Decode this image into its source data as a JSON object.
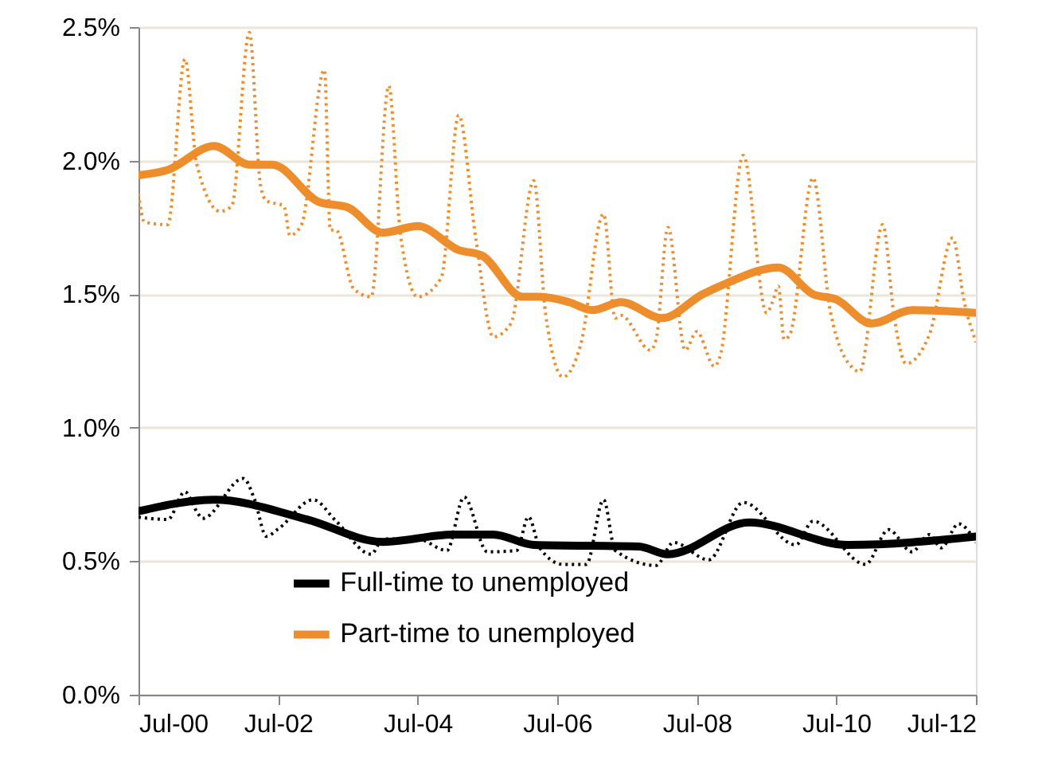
{
  "chart_data": {
    "type": "line",
    "xlim": [
      "2000-07",
      "2012-07"
    ],
    "xticks": [
      {
        "value": "2000-07",
        "label": "Jul-00"
      },
      {
        "value": "2002-07",
        "label": "Jul-02"
      },
      {
        "value": "2004-07",
        "label": "Jul-04"
      },
      {
        "value": "2006-07",
        "label": "Jul-06"
      },
      {
        "value": "2008-07",
        "label": "Jul-08"
      },
      {
        "value": "2010-07",
        "label": "Jul-10"
      },
      {
        "value": "2012-07",
        "label": "Jul-12"
      }
    ],
    "ylim": [
      0,
      2.5
    ],
    "yticks": [
      {
        "value": 0,
        "label": "0.0%"
      },
      {
        "value": 0.5,
        "label": "0.5%"
      },
      {
        "value": 1,
        "label": "1.0%"
      },
      {
        "value": 1.5,
        "label": "1.5%"
      },
      {
        "value": 2,
        "label": "2.0%"
      },
      {
        "value": 2.5,
        "label": "2.5%"
      }
    ],
    "grid": "y",
    "legend": "bottom",
    "marker": "none",
    "series": [
      {
        "color": "#000000",
        "line_style": "dotted",
        "x": [
          "2000-07",
          "2000-12",
          "2001-03",
          "2001-05",
          "2001-06",
          "2002-01",
          "2002-03",
          "2002-05",
          "2002-07",
          "2003-01",
          "2003-05",
          "2003-11",
          "2004-01",
          "2004-07",
          "2004-12",
          "2005-03",
          "2005-07",
          "2005-12",
          "2006-02",
          "2006-04",
          "2006-08",
          "2006-12",
          "2007-03",
          "2007-05",
          "2007-12",
          "2008-03",
          "2008-09",
          "2009-03",
          "2009-12",
          "2010-03",
          "2010-12",
          "2011-04",
          "2011-08",
          "2011-11",
          "2012-01",
          "2012-04",
          "2012-07"
        ],
        "values": [
          0.665,
          0.656,
          0.76,
          0.687,
          0.66,
          0.81,
          0.73,
          0.593,
          0.62,
          0.73,
          0.65,
          0.526,
          0.583,
          0.583,
          0.54,
          0.74,
          0.535,
          0.54,
          0.666,
          0.55,
          0.488,
          0.488,
          0.73,
          0.54,
          0.484,
          0.57,
          0.505,
          0.72,
          0.561,
          0.65,
          0.488,
          0.618,
          0.535,
          0.6,
          0.55,
          0.64,
          0.57
        ]
      },
      {
        "color": "#ed8d2c",
        "line_style": "dotted",
        "x": [
          "2000-07",
          "2000-08",
          "2000-12",
          "2001-03",
          "2001-05",
          "2001-09",
          "2001-11",
          "2002-02",
          "2002-04",
          "2002-05",
          "2002-08",
          "2002-09",
          "2002-11",
          "2003-03",
          "2003-04",
          "2003-05",
          "2003-08",
          "2003-11",
          "2004-02",
          "2004-04",
          "2004-07",
          "2004-11",
          "2005-02",
          "2005-05",
          "2005-08",
          "2005-11",
          "2006-03",
          "2006-05",
          "2006-08",
          "2006-11",
          "2007-03",
          "2007-05",
          "2007-06",
          "2007-11",
          "2007-12",
          "2008-02",
          "2008-05",
          "2008-07",
          "2008-10",
          "2008-11",
          "2009-03",
          "2009-07",
          "2009-08",
          "2009-09",
          "2009-10",
          "2009-11",
          "2010-03",
          "2010-06",
          "2010-10",
          "2010-11",
          "2011-03",
          "2011-05",
          "2011-07",
          "2011-11",
          "2012-03",
          "2012-05",
          "2012-07"
        ],
        "values": [
          1.875,
          1.77,
          1.76,
          2.38,
          1.99,
          1.81,
          1.83,
          2.48,
          1.905,
          1.85,
          1.83,
          1.72,
          1.76,
          2.34,
          1.74,
          1.74,
          1.52,
          1.49,
          2.28,
          1.73,
          1.49,
          1.56,
          2.17,
          1.71,
          1.34,
          1.39,
          1.925,
          1.43,
          1.19,
          1.31,
          1.8,
          1.41,
          1.42,
          1.29,
          1.33,
          1.75,
          1.29,
          1.36,
          1.23,
          1.27,
          2.02,
          1.43,
          1.47,
          1.53,
          1.33,
          1.35,
          1.935,
          1.43,
          1.22,
          1.21,
          1.76,
          1.41,
          1.24,
          1.35,
          1.71,
          1.47,
          1.32
        ]
      },
      {
        "name": "Full-time to unemployed",
        "color": "#000000",
        "line_style": "solid",
        "x": [
          "2000-07",
          "2001-08",
          "2002-12",
          "2004-01",
          "2005-01",
          "2005-08",
          "2006-03",
          "2007-09",
          "2008-02",
          "2009-04",
          "2010-09",
          "2012-07"
        ],
        "values": [
          0.687,
          0.73,
          0.656,
          0.572,
          0.6,
          0.6,
          0.561,
          0.555,
          0.526,
          0.645,
          0.561,
          0.592
        ]
      },
      {
        "name": "Part-time to unemployed",
        "color": "#ed8d2c",
        "line_style": "solid",
        "x": [
          "2000-07",
          "2000-12",
          "2001-08",
          "2002-02",
          "2002-06",
          "2003-02",
          "2003-07",
          "2004-01",
          "2004-07",
          "2005-02",
          "2005-06",
          "2006-01",
          "2006-04",
          "2006-09",
          "2007-01",
          "2007-06",
          "2008-01",
          "2008-08",
          "2008-12",
          "2009-09",
          "2010-03",
          "2010-07",
          "2011-01",
          "2011-08",
          "2012-07"
        ],
        "values": [
          1.945,
          1.965,
          2.055,
          1.985,
          1.985,
          1.845,
          1.825,
          1.73,
          1.755,
          1.665,
          1.645,
          1.49,
          1.49,
          1.47,
          1.44,
          1.47,
          1.41,
          1.5,
          1.54,
          1.6,
          1.5,
          1.48,
          1.39,
          1.44,
          1.43
        ]
      }
    ]
  }
}
